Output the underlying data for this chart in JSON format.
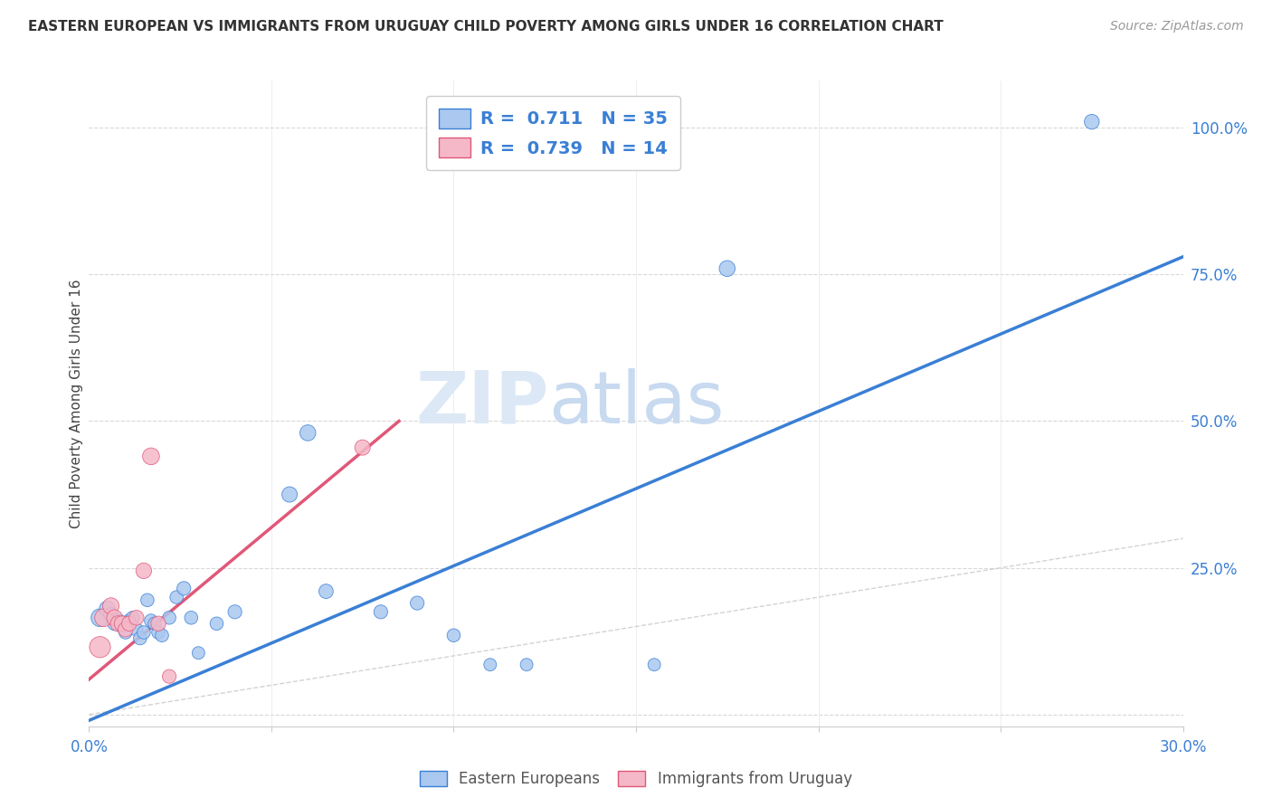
{
  "title": "EASTERN EUROPEAN VS IMMIGRANTS FROM URUGUAY CHILD POVERTY AMONG GIRLS UNDER 16 CORRELATION CHART",
  "source": "Source: ZipAtlas.com",
  "ylabel": "Child Poverty Among Girls Under 16",
  "xlim": [
    0.0,
    0.3
  ],
  "ylim": [
    -0.02,
    1.08
  ],
  "xtick_labels": [
    "0.0%",
    "",
    "",
    "",
    "",
    "",
    "30.0%"
  ],
  "xtick_vals": [
    0.0,
    0.05,
    0.1,
    0.15,
    0.2,
    0.25,
    0.3
  ],
  "ytick_labels": [
    "",
    "25.0%",
    "50.0%",
    "75.0%",
    "100.0%"
  ],
  "ytick_vals": [
    0.0,
    0.25,
    0.5,
    0.75,
    1.0
  ],
  "blue_color": "#aac8f0",
  "blue_line_color": "#3a7fd5",
  "pink_color": "#f5b8c8",
  "pink_line_color": "#e05878",
  "diagonal_color": "#c8c8c8",
  "r_blue": 0.711,
  "n_blue": 35,
  "r_pink": 0.739,
  "n_pink": 14,
  "watermark_zip": "ZIP",
  "watermark_atlas": "atlas",
  "blue_scatter_x": [
    0.003,
    0.005,
    0.006,
    0.007,
    0.008,
    0.009,
    0.01,
    0.011,
    0.012,
    0.013,
    0.014,
    0.015,
    0.016,
    0.017,
    0.018,
    0.019,
    0.02,
    0.022,
    0.024,
    0.026,
    0.028,
    0.03,
    0.035,
    0.04,
    0.055,
    0.06,
    0.065,
    0.08,
    0.09,
    0.1,
    0.11,
    0.12,
    0.155,
    0.175,
    0.275
  ],
  "blue_scatter_y": [
    0.165,
    0.18,
    0.17,
    0.155,
    0.16,
    0.15,
    0.14,
    0.16,
    0.165,
    0.145,
    0.13,
    0.14,
    0.195,
    0.16,
    0.155,
    0.14,
    0.135,
    0.165,
    0.2,
    0.215,
    0.165,
    0.105,
    0.155,
    0.175,
    0.375,
    0.48,
    0.21,
    0.175,
    0.19,
    0.135,
    0.085,
    0.085,
    0.085,
    0.76,
    1.01
  ],
  "blue_scatter_sizes": [
    200,
    160,
    130,
    120,
    120,
    110,
    110,
    110,
    110,
    110,
    110,
    110,
    110,
    110,
    110,
    110,
    110,
    110,
    110,
    120,
    110,
    100,
    110,
    120,
    150,
    160,
    130,
    120,
    120,
    110,
    100,
    100,
    100,
    160,
    140
  ],
  "pink_scatter_x": [
    0.003,
    0.004,
    0.006,
    0.007,
    0.008,
    0.009,
    0.01,
    0.011,
    0.013,
    0.015,
    0.017,
    0.019,
    0.022,
    0.075
  ],
  "pink_scatter_y": [
    0.115,
    0.165,
    0.185,
    0.165,
    0.155,
    0.155,
    0.145,
    0.155,
    0.165,
    0.245,
    0.44,
    0.155,
    0.065,
    0.455
  ],
  "pink_scatter_sizes": [
    280,
    200,
    170,
    160,
    155,
    150,
    140,
    140,
    140,
    155,
    180,
    140,
    120,
    150
  ],
  "blue_line_x0": 0.0,
  "blue_line_x1": 0.3,
  "blue_line_y0": -0.01,
  "blue_line_y1": 0.78,
  "pink_line_x0": 0.0,
  "pink_line_x1": 0.085,
  "pink_line_y0": 0.06,
  "pink_line_y1": 0.5
}
